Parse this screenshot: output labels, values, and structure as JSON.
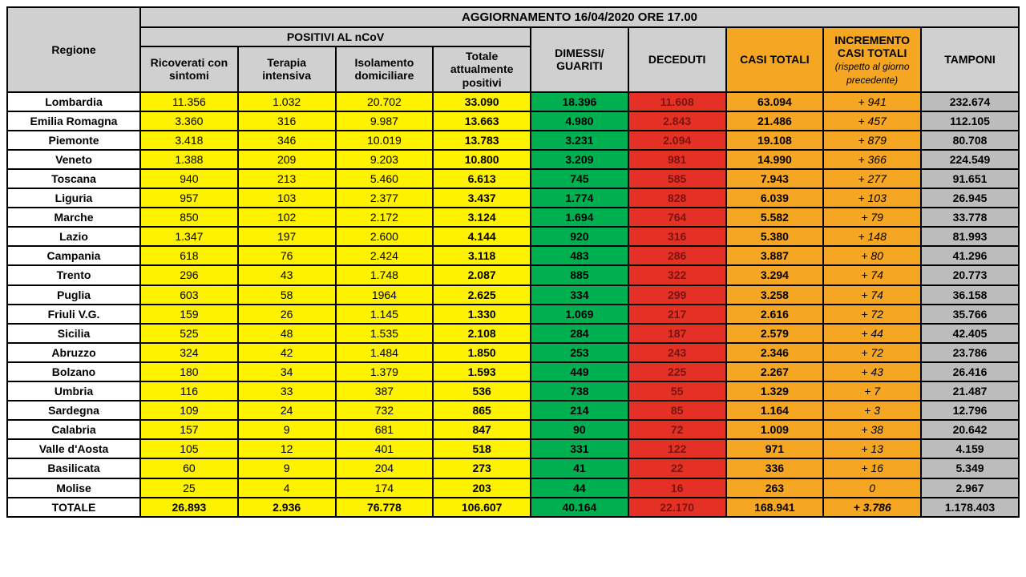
{
  "title": "AGGIORNAMENTO 16/04/2020 ORE 17.00",
  "headers": {
    "regione": "Regione",
    "positivi_group": "POSITIVI AL nCoV",
    "ricoverati": "Ricoverati con sintomi",
    "terapia": "Terapia intensiva",
    "isolamento": "Isolamento domiciliare",
    "totale_pos": "Totale attualmente positivi",
    "dimessi": "DIMESSI/ GUARITI",
    "deceduti": "DECEDUTI",
    "casi_tot": "CASI TOTALI",
    "incremento": "INCREMENTO CASI  TOTALI",
    "incremento_sub": "(rispetto al giorno precedente)",
    "tamponi": "TAMPONI"
  },
  "rows": [
    {
      "reg": "Lombardia",
      "ric": "11.356",
      "ter": "1.032",
      "iso": "20.702",
      "tot": "33.090",
      "dim": "18.396",
      "dec": "11.608",
      "cas": "63.094",
      "inc": "+ 941",
      "tam": "232.674"
    },
    {
      "reg": "Emilia Romagna",
      "ric": "3.360",
      "ter": "316",
      "iso": "9.987",
      "tot": "13.663",
      "dim": "4.980",
      "dec": "2.843",
      "cas": "21.486",
      "inc": "+ 457",
      "tam": "112.105"
    },
    {
      "reg": "Piemonte",
      "ric": "3.418",
      "ter": "346",
      "iso": "10.019",
      "tot": "13.783",
      "dim": "3.231",
      "dec": "2.094",
      "cas": "19.108",
      "inc": "+ 879",
      "tam": "80.708"
    },
    {
      "reg": "Veneto",
      "ric": "1.388",
      "ter": "209",
      "iso": "9.203",
      "tot": "10.800",
      "dim": "3.209",
      "dec": "981",
      "cas": "14.990",
      "inc": "+ 366",
      "tam": "224.549"
    },
    {
      "reg": "Toscana",
      "ric": "940",
      "ter": "213",
      "iso": "5.460",
      "tot": "6.613",
      "dim": "745",
      "dec": "585",
      "cas": "7.943",
      "inc": "+ 277",
      "tam": "91.651"
    },
    {
      "reg": "Liguria",
      "ric": "957",
      "ter": "103",
      "iso": "2.377",
      "tot": "3.437",
      "dim": "1.774",
      "dec": "828",
      "cas": "6.039",
      "inc": "+ 103",
      "tam": "26.945"
    },
    {
      "reg": "Marche",
      "ric": "850",
      "ter": "102",
      "iso": "2.172",
      "tot": "3.124",
      "dim": "1.694",
      "dec": "764",
      "cas": "5.582",
      "inc": "+ 79",
      "tam": "33.778"
    },
    {
      "reg": "Lazio",
      "ric": "1.347",
      "ter": "197",
      "iso": "2.600",
      "tot": "4.144",
      "dim": "920",
      "dec": "316",
      "cas": "5.380",
      "inc": "+ 148",
      "tam": "81.993"
    },
    {
      "reg": "Campania",
      "ric": "618",
      "ter": "76",
      "iso": "2.424",
      "tot": "3.118",
      "dim": "483",
      "dec": "286",
      "cas": "3.887",
      "inc": "+ 80",
      "tam": "41.296"
    },
    {
      "reg": "Trento",
      "ric": "296",
      "ter": "43",
      "iso": "1.748",
      "tot": "2.087",
      "dim": "885",
      "dec": "322",
      "cas": "3.294",
      "inc": "+ 74",
      "tam": "20.773"
    },
    {
      "reg": "Puglia",
      "ric": "603",
      "ter": "58",
      "iso": "1964",
      "tot": "2.625",
      "dim": "334",
      "dec": "299",
      "cas": "3.258",
      "inc": "+ 74",
      "tam": "36.158"
    },
    {
      "reg": "Friuli V.G.",
      "ric": "159",
      "ter": "26",
      "iso": "1.145",
      "tot": "1.330",
      "dim": "1.069",
      "dec": "217",
      "cas": "2.616",
      "inc": "+ 72",
      "tam": "35.766"
    },
    {
      "reg": "Sicilia",
      "ric": "525",
      "ter": "48",
      "iso": "1.535",
      "tot": "2.108",
      "dim": "284",
      "dec": "187",
      "cas": "2.579",
      "inc": "+ 44",
      "tam": "42.405"
    },
    {
      "reg": "Abruzzo",
      "ric": "324",
      "ter": "42",
      "iso": "1.484",
      "tot": "1.850",
      "dim": "253",
      "dec": "243",
      "cas": "2.346",
      "inc": "+ 72",
      "tam": "23.786"
    },
    {
      "reg": "Bolzano",
      "ric": "180",
      "ter": "34",
      "iso": "1.379",
      "tot": "1.593",
      "dim": "449",
      "dec": "225",
      "cas": "2.267",
      "inc": "+ 43",
      "tam": "26.416"
    },
    {
      "reg": "Umbria",
      "ric": "116",
      "ter": "33",
      "iso": "387",
      "tot": "536",
      "dim": "738",
      "dec": "55",
      "cas": "1.329",
      "inc": "+ 7",
      "tam": "21.487"
    },
    {
      "reg": "Sardegna",
      "ric": "109",
      "ter": "24",
      "iso": "732",
      "tot": "865",
      "dim": "214",
      "dec": "85",
      "cas": "1.164",
      "inc": "+ 3",
      "tam": "12.796"
    },
    {
      "reg": "Calabria",
      "ric": "157",
      "ter": "9",
      "iso": "681",
      "tot": "847",
      "dim": "90",
      "dec": "72",
      "cas": "1.009",
      "inc": "+ 38",
      "tam": "20.642"
    },
    {
      "reg": "Valle d'Aosta",
      "ric": "105",
      "ter": "12",
      "iso": "401",
      "tot": "518",
      "dim": "331",
      "dec": "122",
      "cas": "971",
      "inc": "+ 13",
      "tam": "4.159"
    },
    {
      "reg": "Basilicata",
      "ric": "60",
      "ter": "9",
      "iso": "204",
      "tot": "273",
      "dim": "41",
      "dec": "22",
      "cas": "336",
      "inc": "+ 16",
      "tam": "5.349"
    },
    {
      "reg": "Molise",
      "ric": "25",
      "ter": "4",
      "iso": "174",
      "tot": "203",
      "dim": "44",
      "dec": "16",
      "cas": "263",
      "inc": "0",
      "tam": "2.967"
    }
  ],
  "total": {
    "reg": "TOTALE",
    "ric": "26.893",
    "ter": "2.936",
    "iso": "76.778",
    "tot": "106.607",
    "dim": "40.164",
    "dec": "22.170",
    "cas": "168.941",
    "inc": "+ 3.786",
    "tam": "1.178.403"
  },
  "colors": {
    "yellow": "#fff200",
    "green": "#00b050",
    "red": "#e53025",
    "orange": "#f5a623",
    "grey": "#bcbcbc",
    "hdr_grey": "#d0d0d0"
  }
}
